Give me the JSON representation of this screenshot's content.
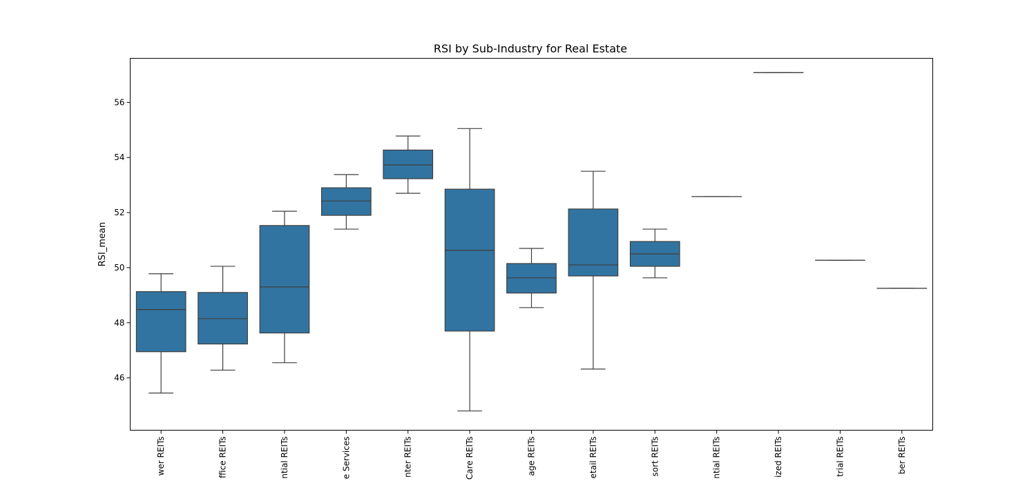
{
  "chart_data": {
    "type": "box",
    "title": "RSI by Sub-Industry for Real Estate",
    "xlabel": "",
    "ylabel": "RSI_mean",
    "ylim": [
      44.1,
      57.6
    ],
    "yticks": [
      46,
      48,
      50,
      52,
      54,
      56
    ],
    "grid": false,
    "box_color": "#3274a1",
    "line_color": "#3d3d3d",
    "categories": [
      "wer REITs",
      "ffice REITs",
      "ntial REITs",
      "e Services",
      "nter REITs",
      "Care REITs",
      "age REITs",
      "etail REITs",
      "sort REITs",
      "ntial REITs",
      "ized REITs",
      "trial REITs",
      "ber REITs"
    ],
    "boxes": [
      {
        "whisker_low": 45.45,
        "q1": 46.95,
        "median": 48.48,
        "q3": 49.13,
        "whisker_high": 49.78
      },
      {
        "whisker_low": 46.28,
        "q1": 47.23,
        "median": 48.15,
        "q3": 49.1,
        "whisker_high": 50.05
      },
      {
        "whisker_low": 46.55,
        "q1": 47.63,
        "median": 49.3,
        "q3": 51.53,
        "whisker_high": 52.05
      },
      {
        "whisker_low": 51.4,
        "q1": 51.9,
        "median": 52.42,
        "q3": 52.9,
        "whisker_high": 53.38
      },
      {
        "whisker_low": 52.7,
        "q1": 53.23,
        "median": 53.73,
        "q3": 54.27,
        "whisker_high": 54.78
      },
      {
        "whisker_low": 44.8,
        "q1": 47.7,
        "median": 50.63,
        "q3": 52.85,
        "whisker_high": 55.05
      },
      {
        "whisker_low": 48.55,
        "q1": 49.08,
        "median": 49.63,
        "q3": 50.15,
        "whisker_high": 50.7
      },
      {
        "whisker_low": 46.32,
        "q1": 49.7,
        "median": 50.1,
        "q3": 52.13,
        "whisker_high": 53.5
      },
      {
        "whisker_low": 49.63,
        "q1": 50.05,
        "median": 50.5,
        "q3": 50.95,
        "whisker_high": 51.4
      },
      {
        "whisker_low": 52.58,
        "q1": 52.58,
        "median": 52.58,
        "q3": 52.58,
        "whisker_high": 52.58
      },
      {
        "whisker_low": 57.08,
        "q1": 57.08,
        "median": 57.08,
        "q3": 57.08,
        "whisker_high": 57.08
      },
      {
        "whisker_low": 50.27,
        "q1": 50.27,
        "median": 50.27,
        "q3": 50.27,
        "whisker_high": 50.27
      },
      {
        "whisker_low": 49.25,
        "q1": 49.25,
        "median": 49.25,
        "q3": 49.25,
        "whisker_high": 49.25
      }
    ]
  }
}
